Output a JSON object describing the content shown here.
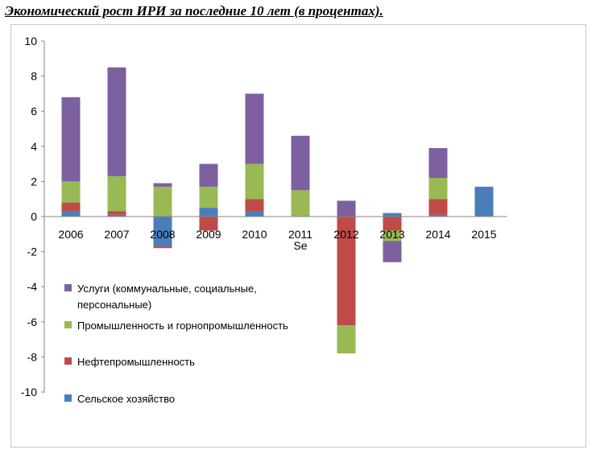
{
  "chart_data": {
    "type": "bar",
    "stacked": true,
    "title": "Экономический рост ИРИ за последние 10 лет (в процентах).",
    "categories": [
      "2006",
      "2007",
      "2008",
      "2009",
      "2010",
      "2011",
      "2012",
      "2013",
      "2014",
      "2015"
    ],
    "category_note": {
      "index": 5,
      "text": "Se"
    },
    "ylim": [
      -10,
      10
    ],
    "yticks": [
      -10,
      -8,
      -6,
      -4,
      -2,
      0,
      2,
      4,
      6,
      8,
      10
    ],
    "grid": false,
    "legend_position": "left-inside",
    "series": [
      {
        "name": "Сельское хозяйство",
        "color": "#4a7ebb",
        "values": [
          0.3,
          0.1,
          -1.7,
          0.5,
          0.3,
          0,
          0,
          0.2,
          0.1,
          1.7
        ]
      },
      {
        "name": "Нефтепромышленность",
        "color": "#be4b48",
        "values": [
          0.5,
          0.2,
          -0.1,
          -0.8,
          0.7,
          0,
          -6.2,
          -0.8,
          0.9,
          0
        ]
      },
      {
        "name": "Промышленность и горнопромышленность",
        "color": "#98b954",
        "values": [
          1.2,
          2.0,
          1.7,
          1.2,
          2.0,
          1.5,
          -1.6,
          -0.6,
          1.2,
          0
        ]
      },
      {
        "name": "Услуги (коммунальные, социальные, персональные)",
        "color": "#7d60a0",
        "values": [
          4.8,
          6.2,
          0.2,
          1.3,
          4.0,
          3.1,
          0.9,
          -1.2,
          1.7,
          0
        ]
      }
    ]
  },
  "legend": {
    "services_line1": "Услуги (коммунальные, социальные,",
    "services_line2": "персональные)",
    "industry": "Промышленность и горнопромышленность",
    "oil": "Нефтепромышленность",
    "agriculture": "Сельское хозяйство"
  }
}
